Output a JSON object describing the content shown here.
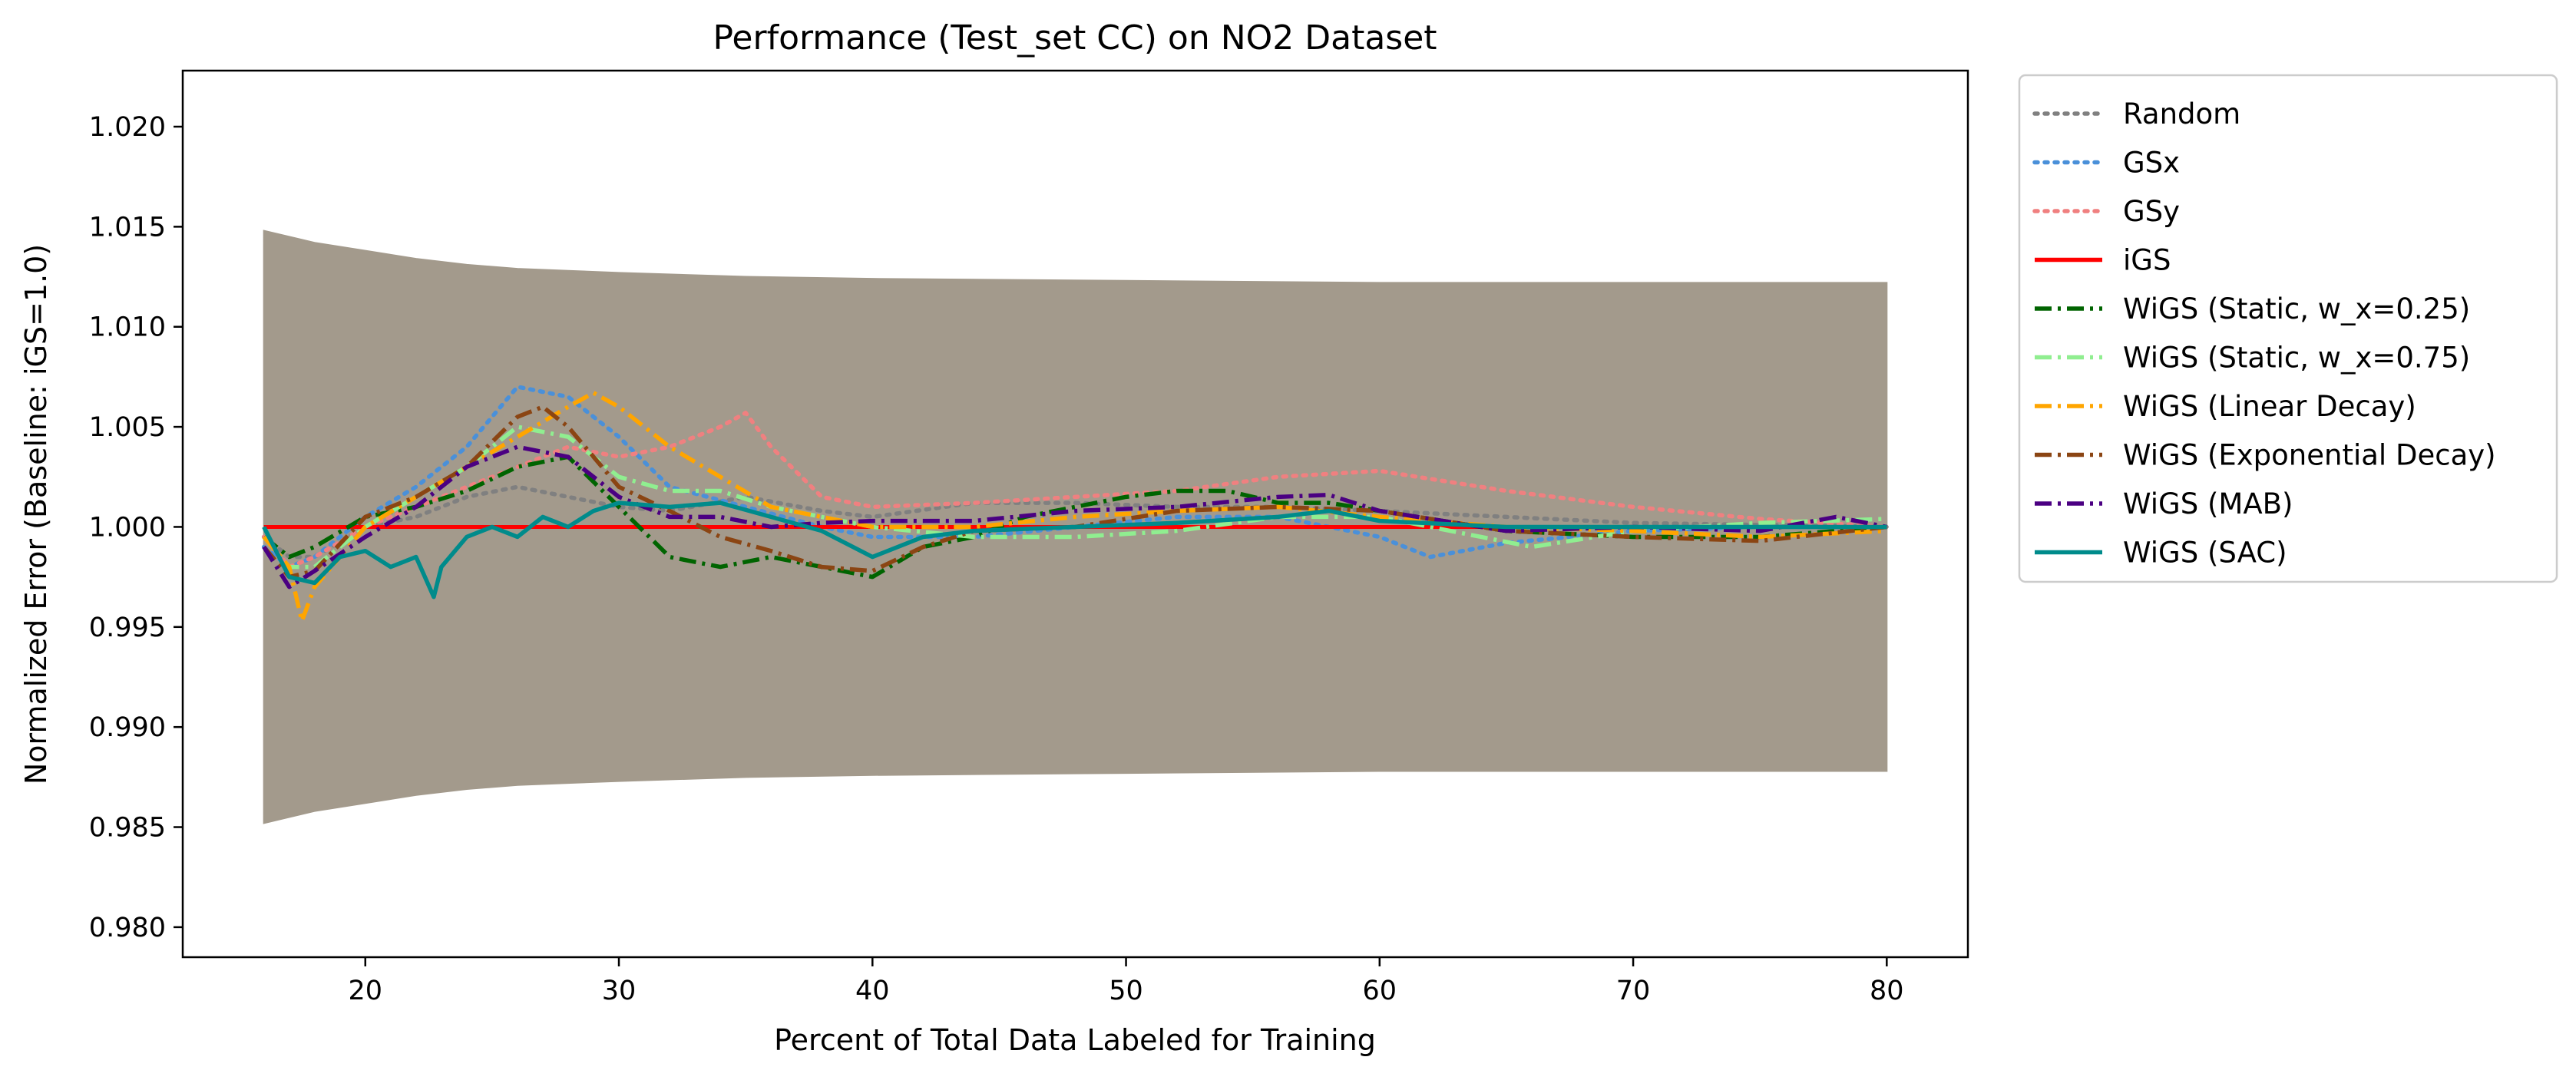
{
  "chart_data": {
    "type": "line",
    "title": "Performance (Test_set CC) on NO2 Dataset",
    "xlabel": "Percent of Total Data Labeled for Training",
    "ylabel": "Normalized Error (Baseline: iGS=1.0)",
    "xlim": [
      12.8,
      83.2
    ],
    "ylim": [
      0.9785,
      1.0228
    ],
    "xticks": [
      20,
      30,
      40,
      50,
      60,
      70,
      80
    ],
    "xtick_labels": [
      "20",
      "30",
      "40",
      "50",
      "60",
      "70",
      "80"
    ],
    "yticks": [
      0.98,
      0.985,
      0.99,
      0.995,
      1.0,
      1.005,
      1.01,
      1.015,
      1.02
    ],
    "ytick_labels": [
      "0.980",
      "0.985",
      "0.990",
      "0.995",
      "1.000",
      "1.005",
      "1.010",
      "1.015",
      "1.020"
    ],
    "grid": false,
    "legend_position": "outside-right",
    "band": {
      "color": "#a39a8c",
      "x": [
        16,
        18,
        20,
        22,
        24,
        26,
        28,
        30,
        35,
        40,
        50,
        60,
        70,
        80
      ],
      "upper": [
        1.0148,
        1.0142,
        1.0138,
        1.0134,
        1.0131,
        1.0129,
        1.0128,
        1.0127,
        1.0125,
        1.0124,
        1.0123,
        1.0122,
        1.0122,
        1.0122
      ],
      "lower": [
        0.9852,
        0.9858,
        0.9862,
        0.9866,
        0.9869,
        0.9871,
        0.9872,
        0.9873,
        0.9875,
        0.9876,
        0.9877,
        0.9878,
        0.9878,
        0.9878
      ]
    },
    "series": [
      {
        "name": "Random",
        "color": "#808080",
        "dash": "dotted",
        "x": [
          16,
          17,
          18,
          20,
          22,
          24,
          26,
          28,
          30,
          32,
          35,
          38,
          40,
          44,
          48,
          52,
          56,
          60,
          65,
          70,
          75,
          80
        ],
        "y": [
          0.9995,
          0.9985,
          0.9985,
          1.0,
          1.0005,
          1.0015,
          1.002,
          1.0015,
          1.001,
          1.0008,
          1.0015,
          1.0008,
          1.0005,
          1.0012,
          1.0012,
          1.001,
          1.001,
          1.0008,
          1.0005,
          1.0002,
          1.0001,
          1.0
        ]
      },
      {
        "name": "GSx",
        "color": "#4a90d9",
        "dash": "dotted",
        "x": [
          16,
          17,
          18,
          20,
          22,
          24,
          26,
          28,
          30,
          32,
          35,
          38,
          40,
          44,
          48,
          52,
          56,
          60,
          62,
          65,
          70,
          75,
          80
        ],
        "y": [
          0.999,
          0.998,
          0.9985,
          1.0005,
          1.002,
          1.004,
          1.007,
          1.0065,
          1.0045,
          1.002,
          1.001,
          1.0,
          0.9995,
          0.9995,
          1.0,
          1.0005,
          1.0005,
          0.9995,
          0.9985,
          0.9992,
          0.9998,
          1.0,
          1.0
        ]
      },
      {
        "name": "GSy",
        "color": "#f08080",
        "dash": "dotted",
        "x": [
          16,
          17,
          18,
          20,
          22,
          24,
          26,
          28,
          30,
          32,
          34,
          35,
          36,
          38,
          40,
          44,
          48,
          52,
          56,
          60,
          65,
          70,
          75,
          80
        ],
        "y": [
          0.9995,
          0.998,
          0.9985,
          1.0,
          1.001,
          1.002,
          1.003,
          1.004,
          1.0035,
          1.004,
          1.005,
          1.0057,
          1.004,
          1.0015,
          1.001,
          1.0012,
          1.0015,
          1.0018,
          1.0025,
          1.0028,
          1.0018,
          1.001,
          1.0004,
          1.0
        ]
      },
      {
        "name": "iGS",
        "color": "#ff0000",
        "dash": "solid",
        "x": [
          16,
          80
        ],
        "y": [
          1.0,
          1.0
        ]
      },
      {
        "name": "WiGS (Static, w_x=0.25)",
        "color": "#006400",
        "dash": "dashdot",
        "x": [
          16,
          17,
          18,
          20,
          22,
          24,
          26,
          28,
          30,
          32,
          34,
          36,
          38,
          40,
          42,
          44,
          46,
          48,
          50,
          52,
          54,
          56,
          58,
          60,
          65,
          70,
          75,
          80
        ],
        "y": [
          0.9995,
          0.9985,
          0.999,
          1.0005,
          1.001,
          1.0018,
          1.003,
          1.0035,
          1.001,
          0.9985,
          0.998,
          0.9985,
          0.998,
          0.9975,
          0.999,
          0.9995,
          1.0005,
          1.001,
          1.0015,
          1.0018,
          1.0018,
          1.0012,
          1.0012,
          1.0008,
          0.9998,
          0.9995,
          0.9995,
          1.0
        ]
      },
      {
        "name": "WiGS (Static, w_x=0.75)",
        "color": "#90ee90",
        "dash": "dashdot",
        "x": [
          16,
          17,
          18,
          20,
          22,
          24,
          26,
          28,
          30,
          32,
          34,
          36,
          38,
          40,
          44,
          48,
          52,
          56,
          60,
          64,
          66,
          70,
          75,
          80
        ],
        "y": [
          0.9995,
          0.998,
          0.998,
          1.0,
          1.0015,
          1.003,
          1.005,
          1.0045,
          1.0025,
          1.0018,
          1.0018,
          1.001,
          1.0005,
          1.0,
          0.9995,
          0.9995,
          0.9998,
          1.0005,
          1.0005,
          0.9995,
          0.999,
          0.9998,
          1.0002,
          1.0004
        ]
      },
      {
        "name": "WiGS (Linear Decay)",
        "color": "#ffa500",
        "dash": "dashdot",
        "x": [
          16,
          17,
          17.5,
          18,
          20,
          22,
          24,
          26,
          28,
          29,
          30,
          32,
          34,
          36,
          38,
          40,
          44,
          48,
          52,
          56,
          60,
          65,
          70,
          75,
          80
        ],
        "y": [
          0.9995,
          0.998,
          0.9953,
          0.997,
          1.0,
          1.0015,
          1.003,
          1.0045,
          1.006,
          1.0067,
          1.006,
          1.004,
          1.0025,
          1.001,
          1.0005,
          1.0,
          1.0,
          1.0005,
          1.0008,
          1.001,
          1.0005,
          1.0,
          0.9998,
          0.9995,
          0.9998
        ]
      },
      {
        "name": "WiGS (Exponential Decay)",
        "color": "#8b4513",
        "dash": "dashdot",
        "x": [
          16,
          17,
          18,
          20,
          22,
          24,
          26,
          27,
          28,
          30,
          32,
          34,
          36,
          38,
          40,
          42,
          44,
          48,
          52,
          56,
          60,
          65,
          70,
          75,
          80
        ],
        "y": [
          0.999,
          0.9975,
          0.9978,
          1.0005,
          1.0015,
          1.003,
          1.0055,
          1.006,
          1.005,
          1.002,
          1.0008,
          0.9995,
          0.9988,
          0.998,
          0.9978,
          0.999,
          0.9998,
          1.0,
          1.0008,
          1.001,
          1.0008,
          0.9998,
          0.9995,
          0.9993,
          1.0
        ]
      },
      {
        "name": "WiGS (MAB)",
        "color": "#4b0082",
        "dash": "dashdot",
        "x": [
          16,
          17,
          18,
          20,
          22,
          24,
          26,
          28,
          30,
          32,
          34,
          36,
          38,
          40,
          44,
          48,
          52,
          56,
          58,
          60,
          65,
          70,
          75,
          78,
          80
        ],
        "y": [
          0.999,
          0.997,
          0.9978,
          0.9995,
          1.001,
          1.003,
          1.004,
          1.0035,
          1.0015,
          1.0005,
          1.0005,
          1.0,
          1.0002,
          1.0003,
          1.0003,
          1.0008,
          1.001,
          1.0015,
          1.0016,
          1.0008,
          0.9998,
          1.0,
          0.9998,
          1.0005,
          1.0
        ]
      },
      {
        "name": "WiGS (SAC)",
        "color": "#008b8b",
        "dash": "solid",
        "x": [
          16,
          17,
          18,
          19,
          20,
          21,
          22,
          22.7,
          23,
          24,
          25,
          26,
          27,
          28,
          29,
          30,
          32,
          34,
          36,
          38,
          40,
          42,
          44,
          48,
          52,
          56,
          58,
          60,
          65,
          70,
          75,
          80
        ],
        "y": [
          1.0,
          0.9975,
          0.9972,
          0.9985,
          0.9988,
          0.998,
          0.9985,
          0.9965,
          0.998,
          0.9995,
          1.0,
          0.9995,
          1.0005,
          1.0,
          1.0008,
          1.0012,
          1.001,
          1.0012,
          1.0005,
          0.9998,
          0.9985,
          0.9995,
          0.9998,
          1.0,
          1.0002,
          1.0005,
          1.0008,
          1.0003,
          1.0,
          1.0,
          1.0,
          1.0
        ]
      }
    ]
  }
}
